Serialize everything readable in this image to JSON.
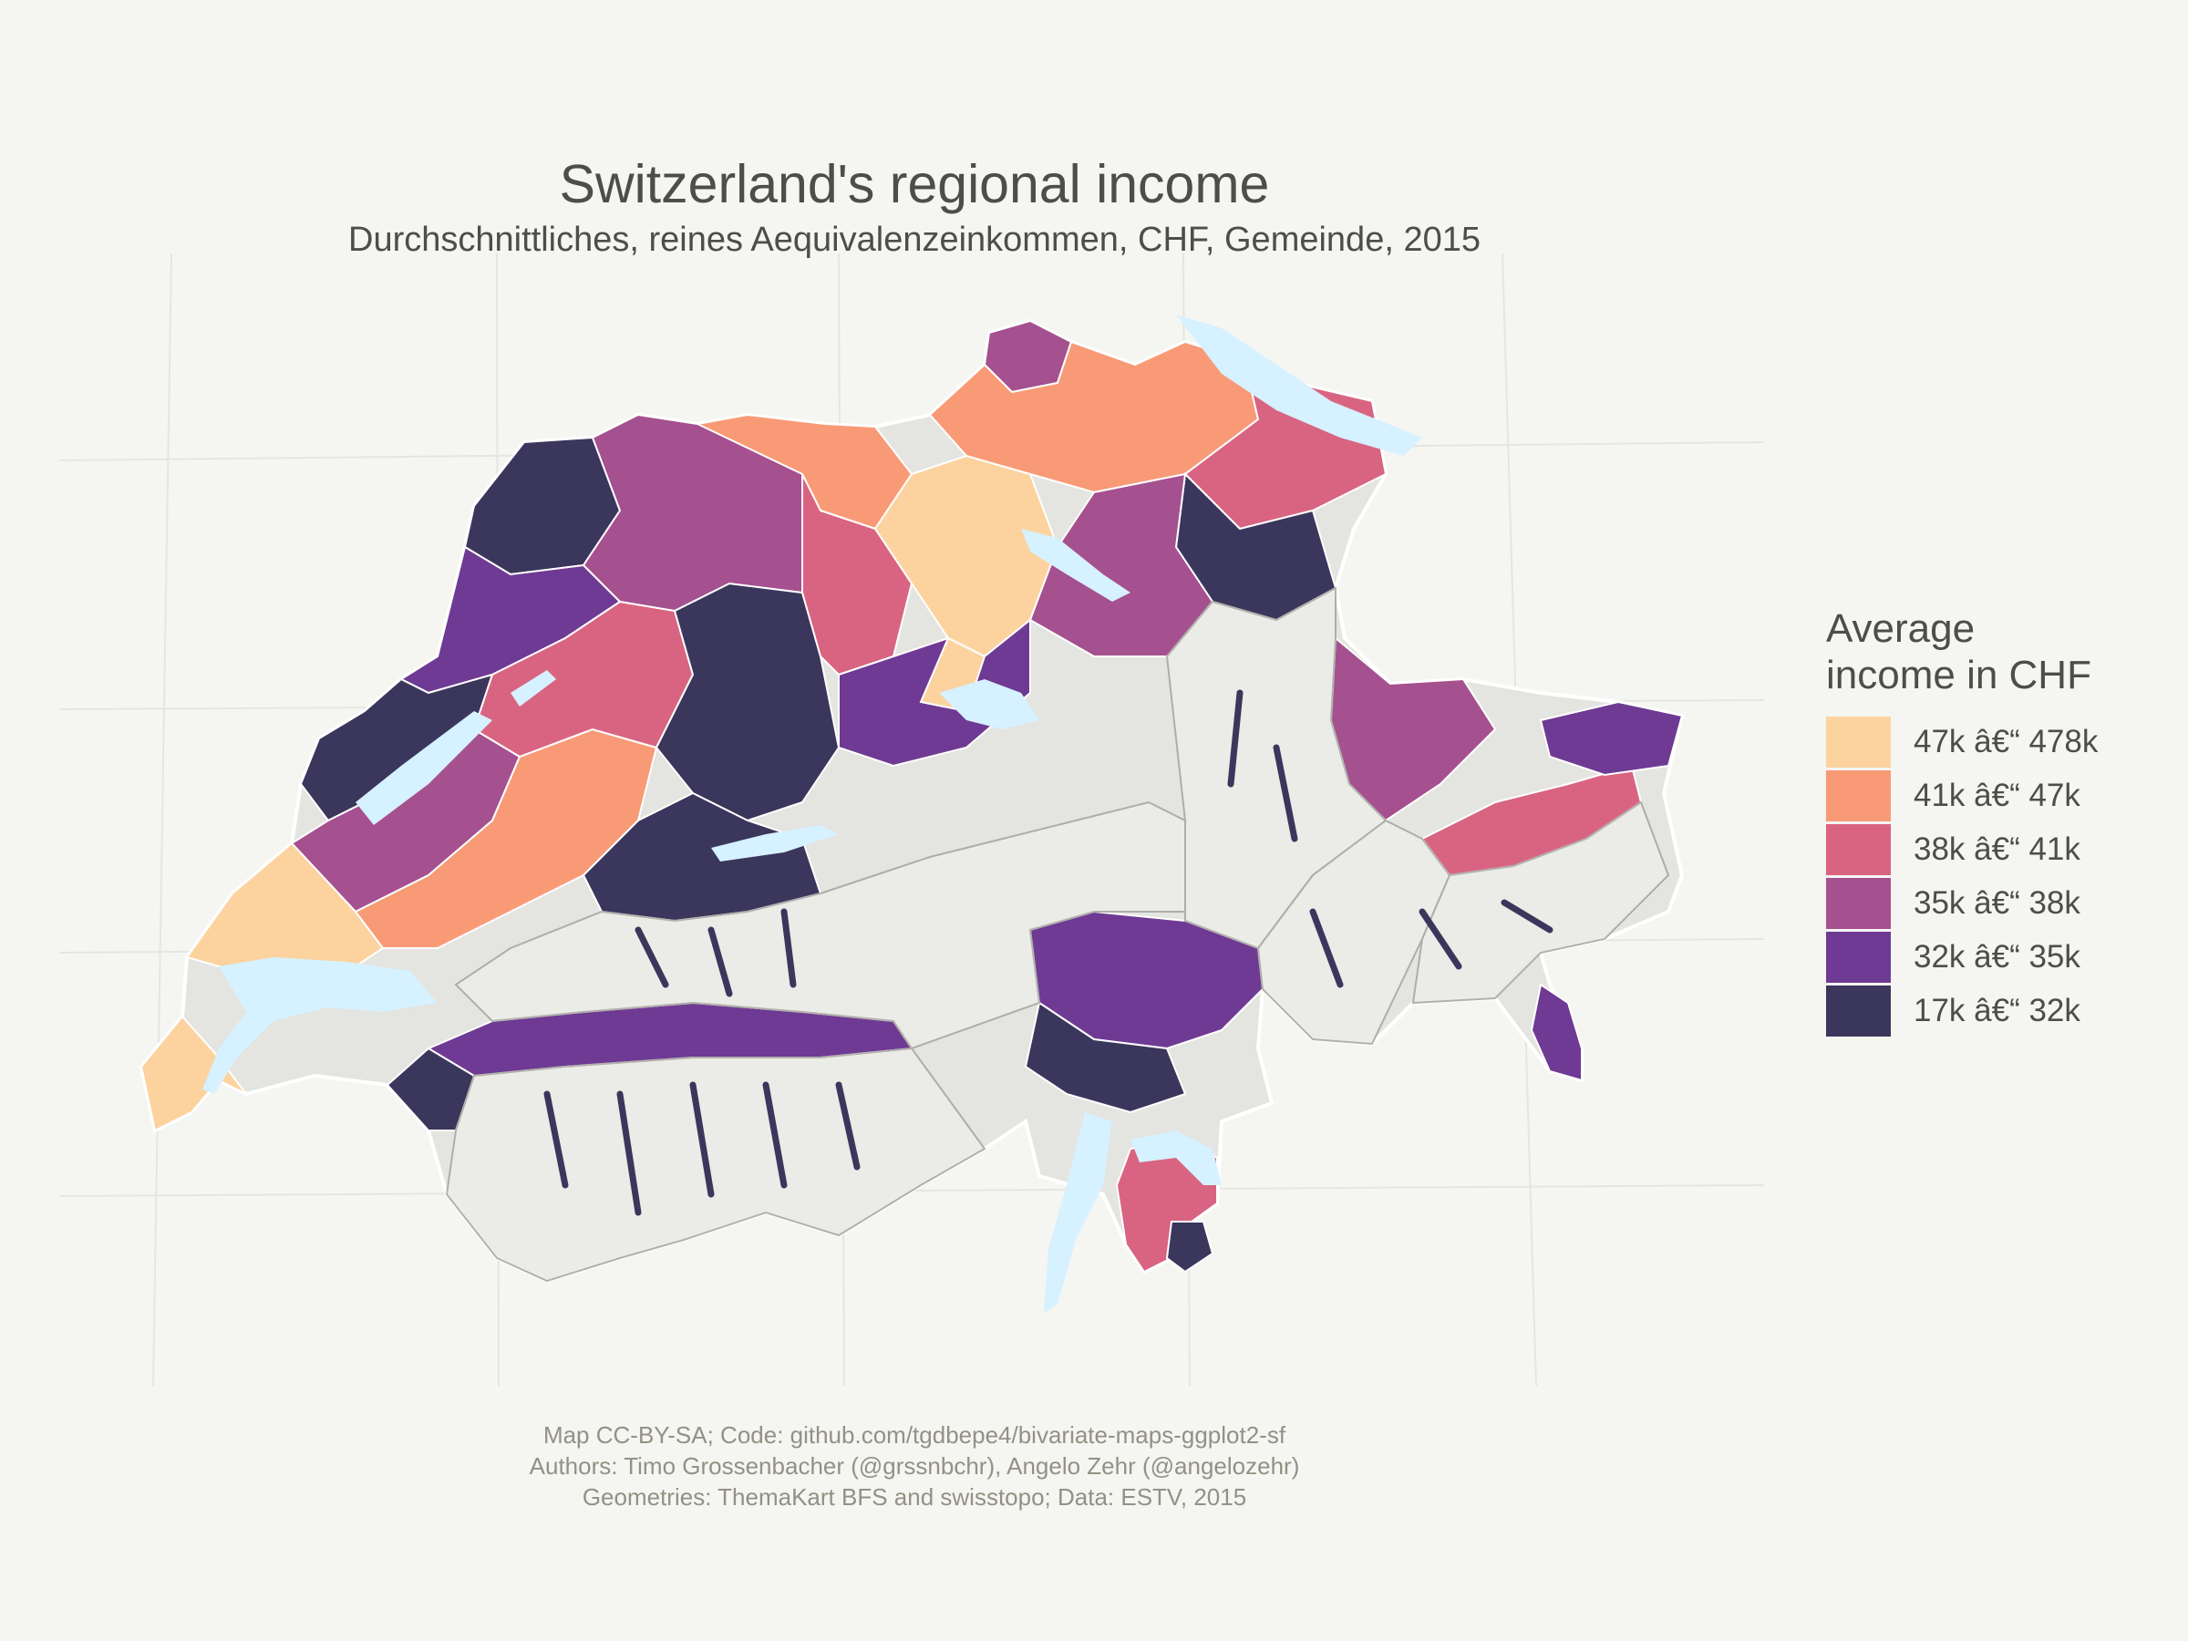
{
  "map": {
    "title": "Switzerland's regional income",
    "subtitle": "Durchschnittliches, reines Aequivalenzeinkommen, CHF, Gemeinde, 2015",
    "legend": {
      "title_line1": "Average",
      "title_line2": "income in CHF",
      "items": [
        {
          "label": "47k â€“ 478k",
          "color": "#fcd39f"
        },
        {
          "label": "41k â€“ 47k",
          "color": "#f99a77"
        },
        {
          "label": "38k â€“ 41k",
          "color": "#d96481"
        },
        {
          "label": "35k â€“ 38k",
          "color": "#a5508f"
        },
        {
          "label": "32k â€“ 35k",
          "color": "#6f3a93"
        },
        {
          "label": "17k â€“ 32k",
          "color": "#3b365c"
        }
      ]
    },
    "caption": {
      "line1": "Map CC-BY-SA; Code: github.com/tgdbepe4/bivariate-maps-ggplot2-sf",
      "line2": "Authors: Timo Grossenbacher (@grssnbchr), Angelo Zehr (@angelozehr)",
      "line3": "Geometries: ThemaKart BFS and swisstopo; Data: ESTV, 2015"
    },
    "colors": {
      "background": "#f5f5f2",
      "lakes": "#d6f1ff",
      "relief": "#e4e4e0",
      "relief_shadow": "#a9a9a4",
      "borders": "#ffffff",
      "graticule": "#e6e5e0"
    }
  }
}
